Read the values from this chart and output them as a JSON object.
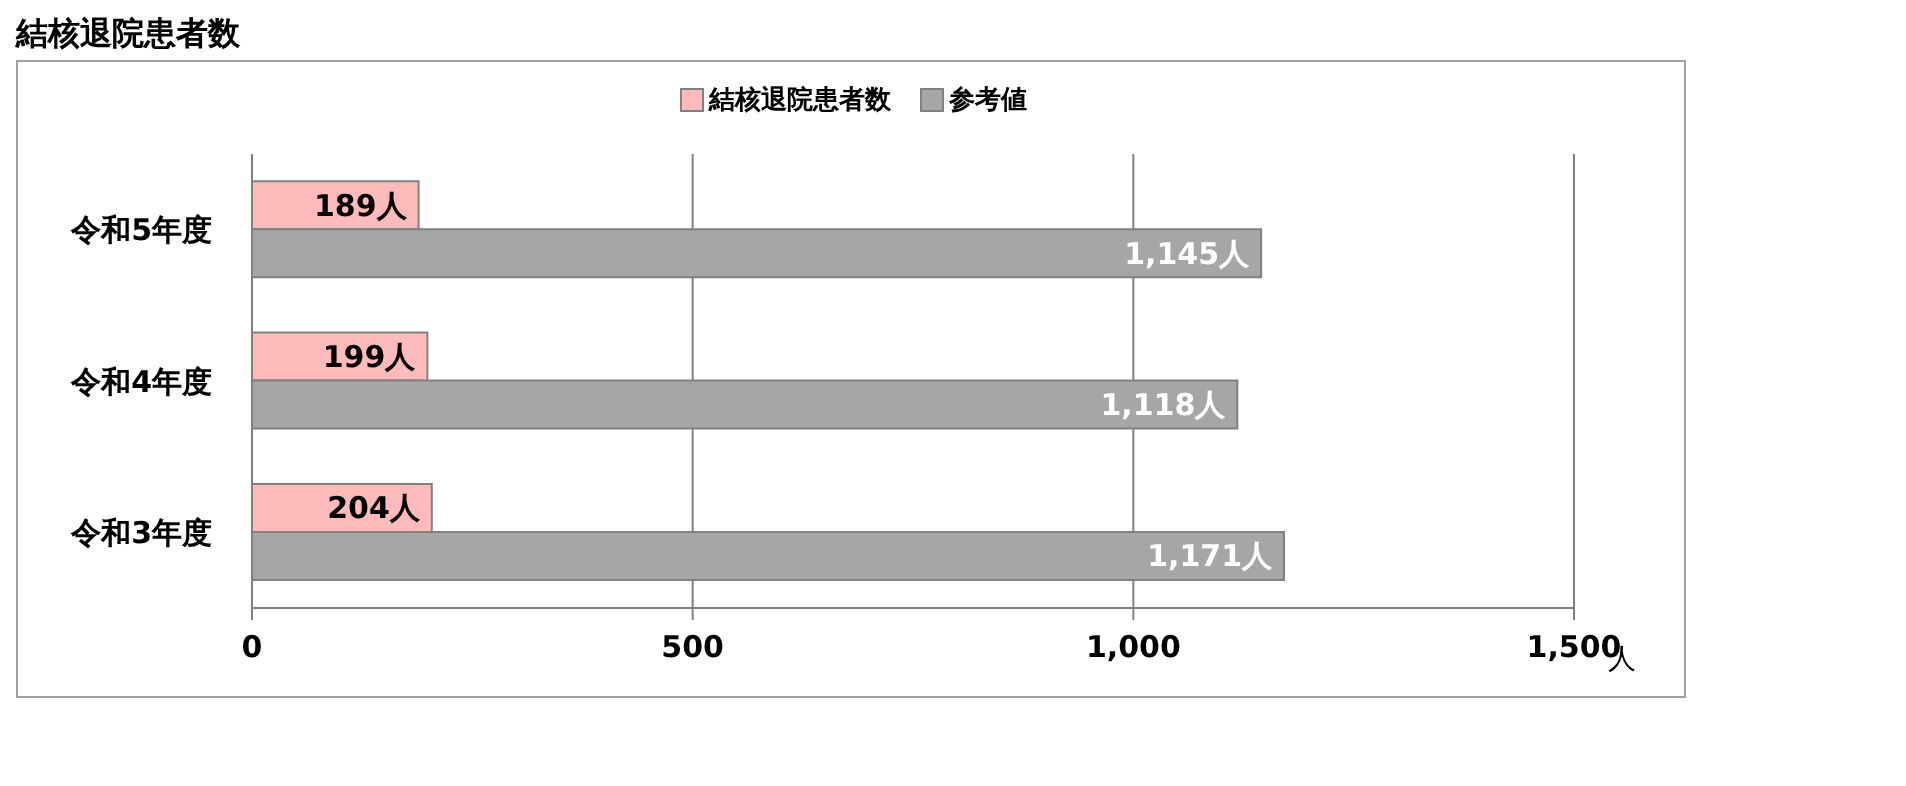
{
  "chart_data": {
    "type": "bar",
    "title": "結核退院患者数",
    "orientation": "horizontal",
    "categories": [
      "令和5年度",
      "令和4年度",
      "令和3年度"
    ],
    "series": [
      {
        "name": "結核退院患者数",
        "color": "#ffbbbb",
        "values": [
          189,
          199,
          204
        ],
        "value_labels": [
          "189人",
          "199人",
          "204人"
        ]
      },
      {
        "name": "参考値",
        "color": "#a6a6a6",
        "values": [
          1145,
          1118,
          1171
        ],
        "value_labels": [
          "1,145人",
          "1,118人",
          "1,171人"
        ]
      }
    ],
    "xlabel": "人",
    "xlim": [
      0,
      1500
    ],
    "xticks": [
      0,
      500,
      {
        "value": 1000,
        "label": "1,000"
      },
      {
        "value": 1500,
        "label": "1,500"
      }
    ],
    "grid": "x",
    "legend": "top"
  }
}
